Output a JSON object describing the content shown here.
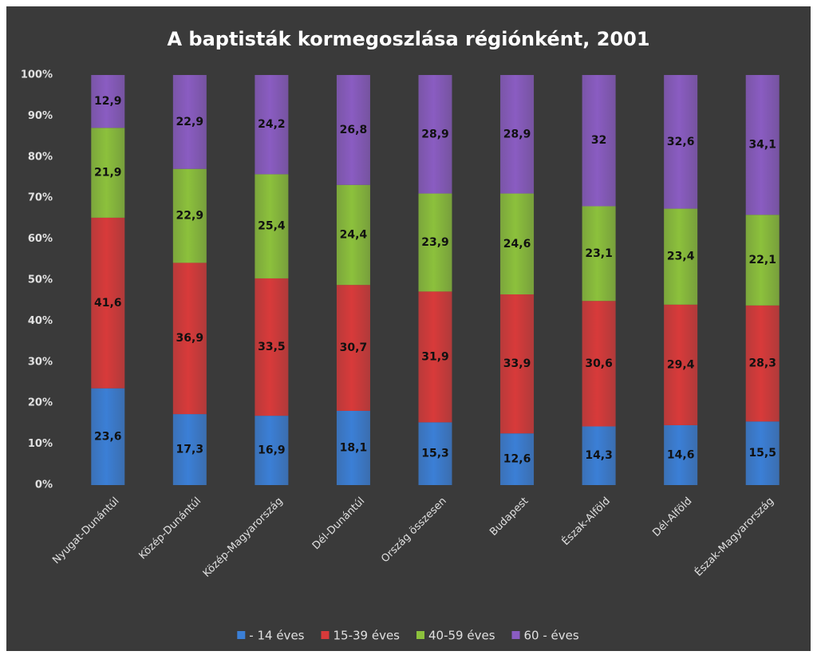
{
  "chart_data": {
    "type": "stacked_bar",
    "title": "A baptisták kormegoszlása régiónként, 2001",
    "categories": [
      "Nyugat-Dunántúl",
      "Közép-Dunántúl",
      "Közép-Magyarország",
      "Dél-Dunántúl",
      "Ország összesen",
      "Budapest",
      "Észak-Alföld",
      "Dél-Alföld",
      "Észak-Magyarország"
    ],
    "series": [
      {
        "name": "- 14 éves",
        "color": "#3b7fd6",
        "values": [
          23.6,
          17.3,
          16.9,
          18.1,
          15.3,
          12.6,
          14.3,
          14.6,
          15.5
        ],
        "value_labels": [
          "23,6",
          "17,3",
          "16,9",
          "18,1",
          "15,3",
          "12,6",
          "14,3",
          "14,6",
          "15,5"
        ]
      },
      {
        "name": "15-39 éves",
        "color": "#d83a3a",
        "values": [
          41.6,
          36.9,
          33.5,
          30.7,
          31.9,
          33.9,
          30.6,
          29.4,
          28.3
        ],
        "value_labels": [
          "41,6",
          "36,9",
          "33,5",
          "30,7",
          "31,9",
          "33,9",
          "30,6",
          "29,4",
          "28,3"
        ]
      },
      {
        "name": "40-59 éves",
        "color": "#8cc13c",
        "values": [
          21.9,
          22.9,
          25.4,
          24.4,
          23.9,
          24.6,
          23.1,
          23.4,
          22.1
        ],
        "value_labels": [
          "21,9",
          "22,9",
          "25,4",
          "24,4",
          "23,9",
          "24,6",
          "23,1",
          "23,4",
          "22,1"
        ]
      },
      {
        "name": "60 - éves",
        "color": "#8a5cc2",
        "values": [
          12.9,
          22.9,
          24.2,
          26.8,
          28.9,
          28.9,
          32,
          32.6,
          34.1
        ],
        "value_labels": [
          "12,9",
          "22,9",
          "24,2",
          "26,8",
          "28,9",
          "28,9",
          "32",
          "32,6",
          "34,1"
        ]
      }
    ],
    "ylim": [
      0,
      100
    ],
    "yticks": [
      {
        "value": 0,
        "label": "0%"
      },
      {
        "value": 10,
        "label": "10%"
      },
      {
        "value": 20,
        "label": "20%"
      },
      {
        "value": 30,
        "label": "30%"
      },
      {
        "value": 40,
        "label": "40%"
      },
      {
        "value": 50,
        "label": "50%"
      },
      {
        "value": 60,
        "label": "60%"
      },
      {
        "value": 70,
        "label": "70%"
      },
      {
        "value": 80,
        "label": "80%"
      },
      {
        "value": 90,
        "label": "90%"
      },
      {
        "value": 100,
        "label": "100%"
      }
    ],
    "grid": false,
    "legend": "bottom"
  }
}
